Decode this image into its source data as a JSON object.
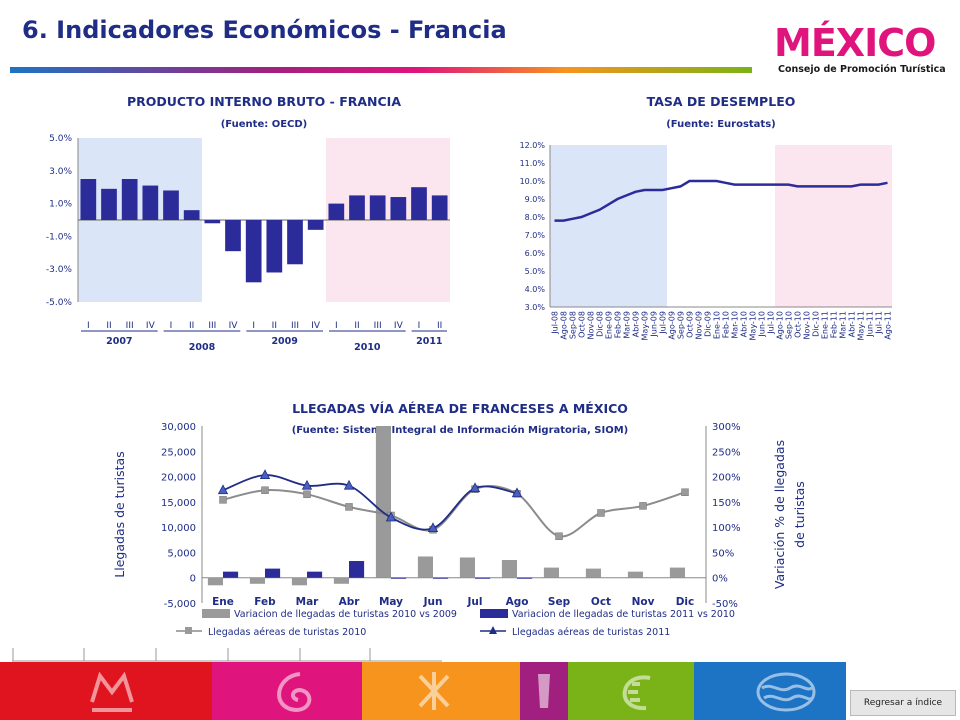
{
  "header": {
    "title": "6. Indicadores Económicos - Francia",
    "logo_word": "MÉXICO",
    "logo_subtitle": "Consejo de Promoción Turística"
  },
  "footer": {
    "back_label": "Regresar a índice"
  },
  "colors": {
    "navy": "#1f2d86",
    "bar_gray": "#9a9a9a",
    "line_gray": "#8c8c8c",
    "band_blue": "#dbe5f8",
    "band_pink": "#fbe6ef",
    "footer_red": "#e0141f",
    "footer_magenta": "#e0147d",
    "footer_orange": "#f7941d",
    "footer_purple": "#a1207f",
    "footer_green": "#7ab317",
    "footer_blue": "#1d74c4"
  },
  "chart_data": [
    {
      "type": "bar",
      "title": "PRODUCTO INTERNO BRUTO - FRANCIA",
      "subtitle": "(Fuente: OECD)",
      "y_ticks": [
        "5.0%",
        "3.0%",
        "1.0%",
        "-1.0%",
        "-3.0%",
        "-5.0%"
      ],
      "ylim": [
        -5,
        5
      ],
      "categories": [
        "I",
        "II",
        "III",
        "IV",
        "I",
        "II",
        "III",
        "IV",
        "I",
        "II",
        "III",
        "IV",
        "I",
        "II",
        "III",
        "IV",
        "I",
        "II"
      ],
      "year_labels": [
        "2007",
        "2008",
        "2009",
        "2010",
        "2011"
      ],
      "values": [
        2.5,
        1.9,
        2.5,
        2.1,
        1.8,
        0.6,
        -0.2,
        -1.9,
        -3.8,
        -3.2,
        -2.7,
        -0.6,
        1.0,
        1.5,
        1.5,
        1.4,
        2.0,
        1.5
      ],
      "bar_color": "#2b2b9a"
    },
    {
      "type": "line",
      "title": "TASA DE DESEMPLEO",
      "subtitle": "(Fuente: Eurostats)",
      "y_ticks": [
        "12.0%",
        "11.0%",
        "10.0%",
        "9.0%",
        "8.0%",
        "7.0%",
        "6.0%",
        "5.0%",
        "4.0%",
        "3.0%"
      ],
      "ylim": [
        3,
        12
      ],
      "x": [
        "Jul-08",
        "Ago-08",
        "Sep-08",
        "Oct-08",
        "Nov-08",
        "Dic-08",
        "Ene-09",
        "Feb-09",
        "Mar-09",
        "Abr-09",
        "May-09",
        "Jun-09",
        "Jul-09",
        "Ago-09",
        "Sep-09",
        "Oct-09",
        "Nov-09",
        "Dic-09",
        "Ene-10",
        "Feb-10",
        "Mar-10",
        "Abr-10",
        "May-10",
        "Jun-10",
        "Jul-10",
        "Ago-10",
        "Sep-10",
        "Oct-10",
        "Nov-10",
        "Dic-10",
        "Ene-11",
        "Feb-11",
        "Mar-11",
        "Abr-11",
        "May-11",
        "Jun-11",
        "Jul-11",
        "Ago-11"
      ],
      "values": [
        7.8,
        7.8,
        7.9,
        8.0,
        8.2,
        8.4,
        8.7,
        9.0,
        9.2,
        9.4,
        9.5,
        9.5,
        9.5,
        9.6,
        9.7,
        10.0,
        10.0,
        10.0,
        10.0,
        9.9,
        9.8,
        9.8,
        9.8,
        9.8,
        9.8,
        9.8,
        9.8,
        9.7,
        9.7,
        9.7,
        9.7,
        9.7,
        9.7,
        9.7,
        9.8,
        9.8,
        9.8,
        9.9
      ],
      "line_color": "#2b2b9a"
    },
    {
      "type": "bar",
      "title": "LLEGADAS VÍA AÉREA DE FRANCESES A MÉXICO",
      "subtitle": "(Fuente: Sistema Integral de Información Migratoria, SIOM)",
      "ylabel": "Llegadas de turistas",
      "y2label_line1": "Variación % de llegadas",
      "y2label_line2": "de turistas",
      "categories": [
        "Ene",
        "Feb",
        "Mar",
        "Abr",
        "May",
        "Jun",
        "Jul",
        "Ago",
        "Sep",
        "Oct",
        "Nov",
        "Dic"
      ],
      "y_ticks": [
        "30,000",
        "25,000",
        "20,000",
        "15,000",
        "10,000",
        "5,000",
        "0",
        "-5,000"
      ],
      "ylim": [
        -5000,
        30000
      ],
      "y2_ticks": [
        "300%",
        "250%",
        "200%",
        "150%",
        "100%",
        "50%",
        "0%",
        "-50%"
      ],
      "y2lim": [
        -50,
        300
      ],
      "series": [
        {
          "name": "Variacion de llegadas de turistas 2010 vs 2009",
          "axis": "right",
          "kind": "bar",
          "color": "#9a9a9a",
          "values": [
            -15,
            -12,
            -15,
            -12,
            300,
            42,
            40,
            35,
            20,
            18,
            12,
            20
          ]
        },
        {
          "name": "Variacion de llegadas de turistas 2011 vs 2010",
          "axis": "right",
          "kind": "bar",
          "color": "#2b2b9a",
          "values": [
            12,
            18,
            12,
            33,
            0,
            0,
            0,
            0,
            null,
            null,
            null,
            null
          ]
        },
        {
          "name": "Llegadas aéreas de turistas 2010",
          "axis": "left",
          "kind": "line",
          "color": "#8c8c8c",
          "marker": "square",
          "values": [
            15400,
            17300,
            16500,
            14000,
            12300,
            9500,
            17500,
            16600,
            8200,
            12800,
            14200,
            16900
          ]
        },
        {
          "name": "Llegadas aéreas de turistas 2011",
          "axis": "left",
          "kind": "line",
          "color": "#1f2d86",
          "marker": "triangle",
          "values": [
            17300,
            20300,
            18200,
            18200,
            11900,
            9800,
            17700,
            16700,
            null,
            null,
            null,
            null
          ]
        }
      ]
    }
  ]
}
